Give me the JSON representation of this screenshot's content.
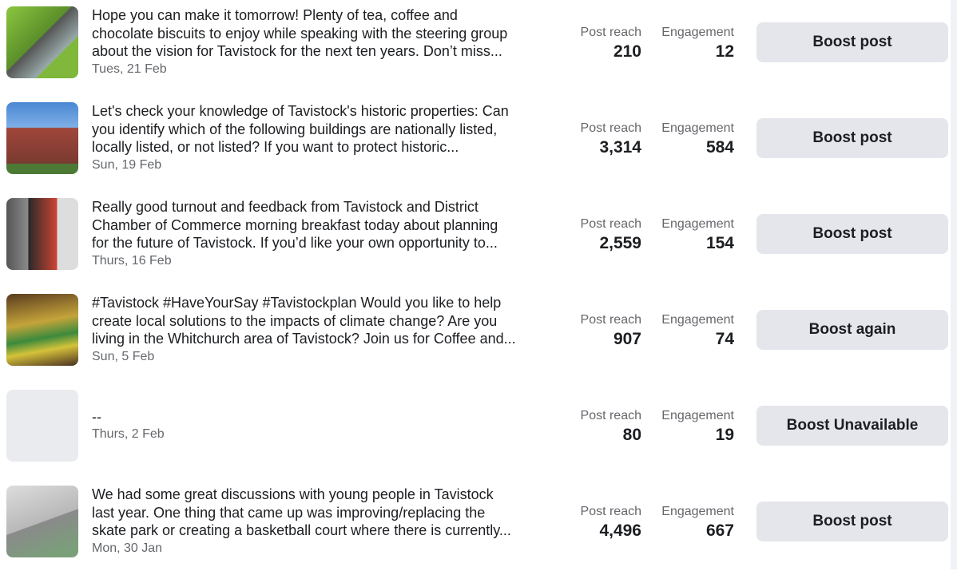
{
  "posts": [
    {
      "text_lines": [
        "Hope you can make it tomorrow! Plenty of tea, coffee and",
        "chocolate biscuits to enjoy while speaking with the steering group",
        "about the vision for Tavistock for the next ten years. Don’t miss..."
      ],
      "date": "Tues, 21 Feb",
      "reach_label": "Post reach",
      "reach": "210",
      "engagement_label": "Engagement",
      "engagement": "12",
      "button": "Boost post"
    },
    {
      "text_lines": [
        "Let's check your knowledge of Tavistock's historic properties: Can",
        "you identify which of the following buildings are nationally listed,",
        "locally listed, or not listed? If you want to protect historic..."
      ],
      "date": "Sun, 19 Feb",
      "reach_label": "Post reach",
      "reach": "3,314",
      "engagement_label": "Engagement",
      "engagement": "584",
      "button": "Boost post"
    },
    {
      "text_lines": [
        "Really good turnout and feedback from Tavistock and District",
        "Chamber of Commerce morning breakfast today about planning",
        "for the future of Tavistock. If you’d like your own opportunity to..."
      ],
      "date": "Thurs, 16 Feb",
      "reach_label": "Post reach",
      "reach": "2,559",
      "engagement_label": "Engagement",
      "engagement": "154",
      "button": "Boost post"
    },
    {
      "text_lines": [
        "#Tavistock #HaveYourSay #Tavistockplan Would you like to help",
        "create local solutions to the impacts of climate change? Are you",
        "living in the Whitchurch area of Tavistock? Join us for Coffee and..."
      ],
      "date": "Sun, 5 Feb",
      "reach_label": "Post reach",
      "reach": "907",
      "engagement_label": "Engagement",
      "engagement": "74",
      "button": "Boost again"
    },
    {
      "text_lines": [
        "--"
      ],
      "date": "Thurs, 2 Feb",
      "reach_label": "Post reach",
      "reach": "80",
      "engagement_label": "Engagement",
      "engagement": "19",
      "button": "Boost Unavailable"
    },
    {
      "text_lines": [
        "We had some great discussions with young people in Tavistock",
        "last year. One thing that came up was improving/replacing the",
        "skate park or creating a basketball court where there is currently..."
      ],
      "date": "Mon, 30 Jan",
      "reach_label": "Post reach",
      "reach": "4,496",
      "engagement_label": "Engagement",
      "engagement": "667",
      "button": "Boost post"
    }
  ]
}
